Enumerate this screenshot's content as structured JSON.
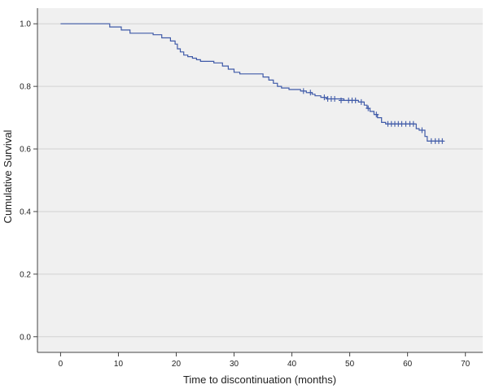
{
  "chart_data": {
    "type": "line",
    "title": "",
    "xlabel": "Time to discontinuation (months)",
    "ylabel": "Cumulative Survival",
    "xlim": [
      -4,
      73
    ],
    "ylim": [
      -0.05,
      1.05
    ],
    "x_ticks": [
      0,
      10,
      20,
      30,
      40,
      50,
      60,
      70
    ],
    "y_ticks": [
      0.0,
      0.2,
      0.4,
      0.6,
      0.8,
      1.0
    ],
    "x_tick_labels": [
      "0",
      "10",
      "20",
      "30",
      "40",
      "50",
      "60",
      "70"
    ],
    "y_tick_labels": [
      "0.0",
      "0.2",
      "0.4",
      "0.6",
      "0.8",
      "1.0"
    ],
    "grid": "horizontal",
    "background_color": "#f0f0f0",
    "line_color": "#3f5aa8",
    "series": [
      {
        "steps": [
          [
            0,
            1.0
          ],
          [
            8.5,
            0.99
          ],
          [
            10.5,
            0.98
          ],
          [
            12,
            0.97
          ],
          [
            16,
            0.965
          ],
          [
            17.5,
            0.955
          ],
          [
            19,
            0.945
          ],
          [
            19.8,
            0.935
          ],
          [
            20.2,
            0.92
          ],
          [
            20.7,
            0.91
          ],
          [
            21.3,
            0.9
          ],
          [
            22,
            0.895
          ],
          [
            22.8,
            0.89
          ],
          [
            23.5,
            0.885
          ],
          [
            24.2,
            0.88
          ],
          [
            26.5,
            0.875
          ],
          [
            28,
            0.865
          ],
          [
            29,
            0.855
          ],
          [
            30,
            0.845
          ],
          [
            31,
            0.84
          ],
          [
            35,
            0.83
          ],
          [
            36,
            0.82
          ],
          [
            36.8,
            0.81
          ],
          [
            37.5,
            0.8
          ],
          [
            38.2,
            0.795
          ],
          [
            39.5,
            0.79
          ],
          [
            41.5,
            0.785
          ],
          [
            42.5,
            0.78
          ],
          [
            43.5,
            0.775
          ],
          [
            44,
            0.77
          ],
          [
            45,
            0.765
          ],
          [
            46,
            0.76
          ],
          [
            49,
            0.755
          ],
          [
            51.5,
            0.75
          ],
          [
            52.5,
            0.74
          ],
          [
            53,
            0.73
          ],
          [
            53.5,
            0.72
          ],
          [
            54.2,
            0.71
          ],
          [
            54.8,
            0.7
          ],
          [
            55.5,
            0.685
          ],
          [
            56.2,
            0.68
          ],
          [
            61.5,
            0.665
          ],
          [
            62,
            0.66
          ],
          [
            63,
            0.64
          ],
          [
            63.4,
            0.625
          ]
        ],
        "end_x": 66.2,
        "censored": [
          [
            42,
            0.785
          ],
          [
            43.2,
            0.78
          ],
          [
            45.6,
            0.765
          ],
          [
            46.2,
            0.76
          ],
          [
            46.8,
            0.76
          ],
          [
            47.4,
            0.76
          ],
          [
            48.5,
            0.755
          ],
          [
            49.8,
            0.755
          ],
          [
            50.4,
            0.755
          ],
          [
            51,
            0.755
          ],
          [
            52,
            0.75
          ],
          [
            53.2,
            0.73
          ],
          [
            54.6,
            0.71
          ],
          [
            56.6,
            0.68
          ],
          [
            57.2,
            0.68
          ],
          [
            57.8,
            0.68
          ],
          [
            58.4,
            0.68
          ],
          [
            59,
            0.68
          ],
          [
            59.7,
            0.68
          ],
          [
            60.4,
            0.68
          ],
          [
            61,
            0.68
          ],
          [
            62.5,
            0.66
          ],
          [
            64.1,
            0.625
          ],
          [
            64.8,
            0.625
          ],
          [
            65.4,
            0.625
          ],
          [
            66,
            0.625
          ]
        ]
      }
    ]
  }
}
